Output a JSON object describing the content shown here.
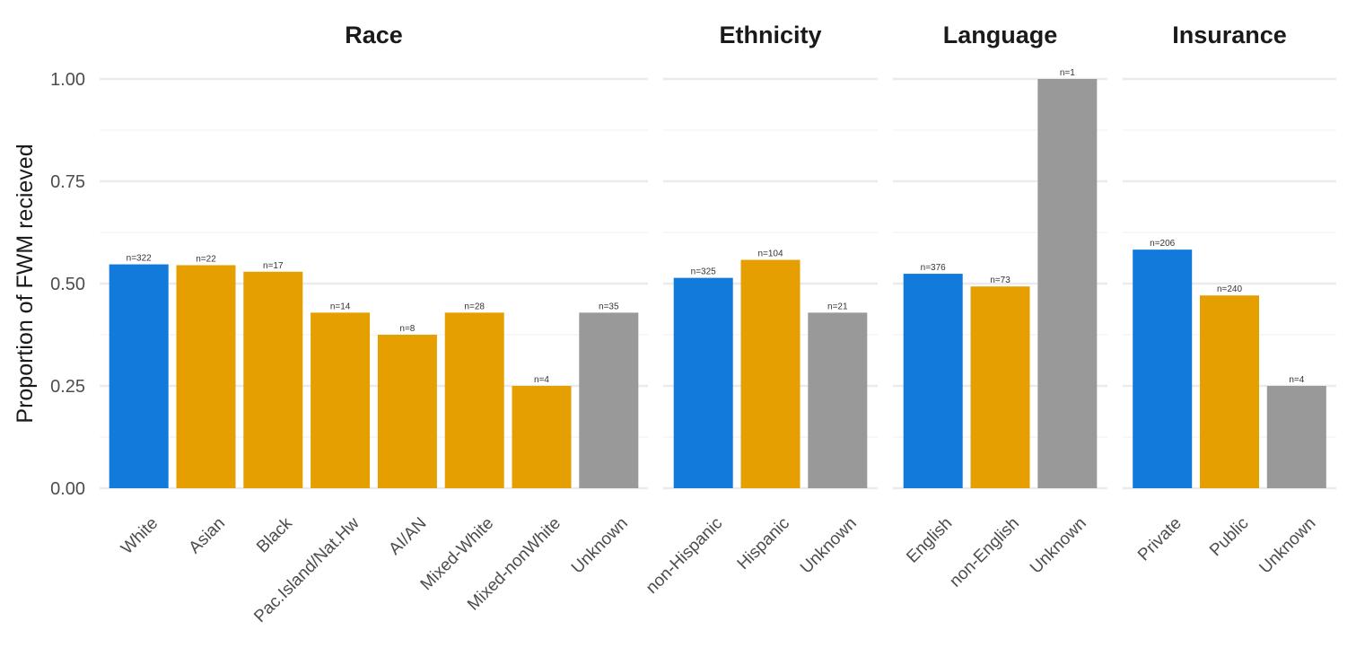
{
  "chart_data": {
    "type": "bar",
    "ylabel": "Proportion of FWM recieved",
    "xlabel": "",
    "ylim": [
      0,
      1
    ],
    "yticks": [
      "0.00",
      "0.25",
      "0.50",
      "0.75",
      "1.00"
    ],
    "grid": true,
    "legend": "none",
    "colors": {
      "reference": "#127ADB",
      "comparison": "#E69F00",
      "unknown": "#999999"
    },
    "facets": [
      {
        "title": "Race",
        "categories": [
          "White",
          "Asian",
          "Black",
          "Pac.Island/Nat.Hw",
          "AI/AN",
          "Mixed-White",
          "Mixed-nonWhite",
          "Unknown"
        ],
        "values": [
          0.547,
          0.545,
          0.529,
          0.429,
          0.375,
          0.429,
          0.25,
          0.429
        ],
        "labels": [
          "n=322",
          "n=22",
          "n=17",
          "n=14",
          "n=8",
          "n=28",
          "n=4",
          "n=35"
        ],
        "groups": [
          "reference",
          "comparison",
          "comparison",
          "comparison",
          "comparison",
          "comparison",
          "comparison",
          "unknown"
        ]
      },
      {
        "title": "Ethnicity",
        "categories": [
          "non-Hispanic",
          "Hispanic",
          "Unknown"
        ],
        "values": [
          0.514,
          0.558,
          0.429
        ],
        "labels": [
          "n=325",
          "n=104",
          "n=21"
        ],
        "groups": [
          "reference",
          "comparison",
          "unknown"
        ]
      },
      {
        "title": "Language",
        "categories": [
          "English",
          "non-English",
          "Unknown"
        ],
        "values": [
          0.524,
          0.493,
          1.0
        ],
        "labels": [
          "n=376",
          "n=73",
          "n=1"
        ],
        "groups": [
          "reference",
          "comparison",
          "unknown"
        ]
      },
      {
        "title": "Insurance",
        "categories": [
          "Private",
          "Public",
          "Unknown"
        ],
        "values": [
          0.583,
          0.471,
          0.25
        ],
        "labels": [
          "n=206",
          "n=240",
          "n=4"
        ],
        "groups": [
          "reference",
          "comparison",
          "unknown"
        ]
      }
    ]
  }
}
